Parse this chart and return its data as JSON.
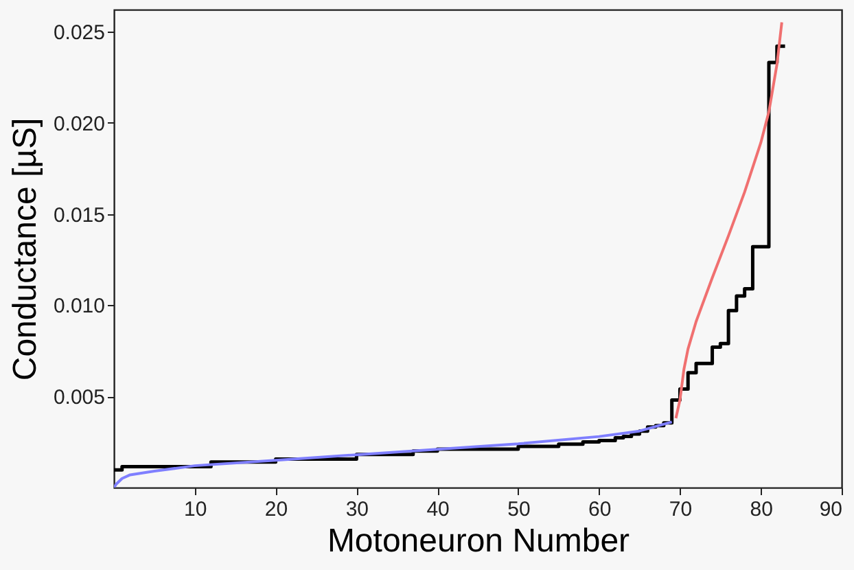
{
  "chart_data": {
    "type": "line",
    "xlabel": "Motoneuron Number",
    "ylabel": "Conductance [µS]",
    "xlim": [
      0,
      90
    ],
    "ylim": [
      0,
      0.0262
    ],
    "xticks": [
      10,
      20,
      30,
      40,
      50,
      60,
      70,
      80,
      90
    ],
    "yticks": [
      0.005,
      {
        "value": 0.01,
        "label": "0.010"
      },
      0.015,
      {
        "value": 0.02,
        "label": "0.020"
      },
      0.025
    ],
    "series": [
      {
        "type": "step",
        "color": "#000000",
        "x": [
          0,
          1,
          12,
          20,
          30,
          37,
          40,
          50,
          55,
          58,
          60,
          62,
          63,
          64,
          65,
          66,
          67,
          68,
          69,
          70,
          71,
          72,
          74,
          75,
          76,
          77,
          78,
          79,
          81,
          82,
          83
        ],
        "values": [
          0.00097,
          0.00115,
          0.0014,
          0.00156,
          0.00182,
          0.002,
          0.00211,
          0.00226,
          0.00238,
          0.0025,
          0.00258,
          0.00273,
          0.0028,
          0.00294,
          0.0031,
          0.00332,
          0.0034,
          0.00355,
          0.0048,
          0.0054,
          0.0063,
          0.0068,
          0.0077,
          0.0079,
          0.0097,
          0.0105,
          0.0109,
          0.0132,
          0.0233,
          0.0242,
          0.0242
        ]
      },
      {
        "color": "#7f7fff",
        "x": [
          0,
          0.3,
          1,
          2,
          5,
          10,
          20,
          30,
          40,
          50,
          60,
          65,
          69
        ],
        "values": [
          0,
          0.0002,
          0.0005,
          0.0007,
          0.0009,
          0.0012,
          0.0015,
          0.0018,
          0.0021,
          0.0024,
          0.0028,
          0.0031,
          0.0036
        ]
      },
      {
        "color": "#f07070",
        "x": [
          69.5,
          70,
          70.5,
          71,
          72,
          74,
          76,
          78,
          80,
          81,
          82,
          82.6
        ],
        "values": [
          0.0038,
          0.0048,
          0.0065,
          0.0076,
          0.0091,
          0.0115,
          0.0138,
          0.0162,
          0.0189,
          0.0206,
          0.0232,
          0.0255
        ]
      }
    ]
  }
}
